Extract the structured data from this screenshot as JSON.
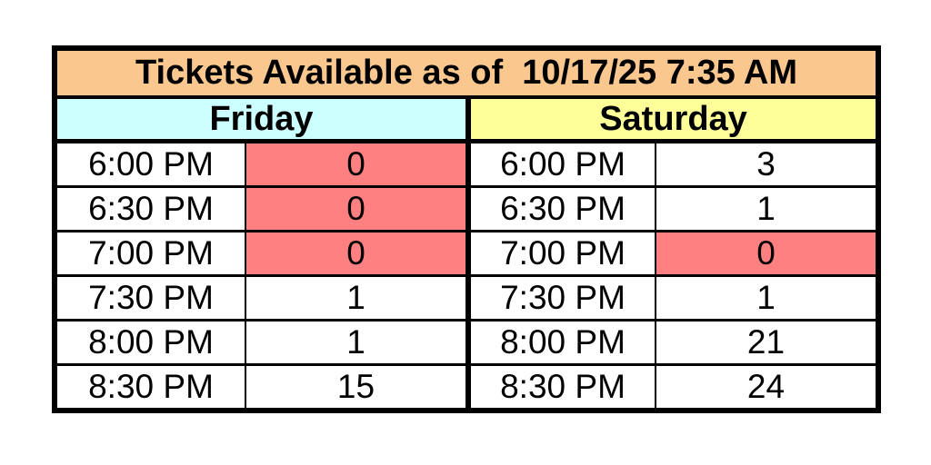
{
  "table": {
    "title": "Tickets Available as of  10/17/25 7:35 AM",
    "as_of_date": "10/17/25",
    "as_of_time": "7:35 AM",
    "days": [
      {
        "label": "Friday"
      },
      {
        "label": "Saturday"
      }
    ],
    "rows": [
      {
        "friday": {
          "time": "6:00 PM",
          "tickets": "0",
          "sold_out": true
        },
        "saturday": {
          "time": "6:00 PM",
          "tickets": "3",
          "sold_out": false
        }
      },
      {
        "friday": {
          "time": "6:30 PM",
          "tickets": "0",
          "sold_out": true
        },
        "saturday": {
          "time": "6:30 PM",
          "tickets": "1",
          "sold_out": false
        }
      },
      {
        "friday": {
          "time": "7:00 PM",
          "tickets": "0",
          "sold_out": true
        },
        "saturday": {
          "time": "7:00 PM",
          "tickets": "0",
          "sold_out": true
        }
      },
      {
        "friday": {
          "time": "7:30 PM",
          "tickets": "1",
          "sold_out": false
        },
        "saturday": {
          "time": "7:30 PM",
          "tickets": "1",
          "sold_out": false
        }
      },
      {
        "friday": {
          "time": "8:00 PM",
          "tickets": "1",
          "sold_out": false
        },
        "saturday": {
          "time": "8:00 PM",
          "tickets": "21",
          "sold_out": false
        }
      },
      {
        "friday": {
          "time": "8:30 PM",
          "tickets": "15",
          "sold_out": false
        },
        "saturday": {
          "time": "8:30 PM",
          "tickets": "24",
          "sold_out": false
        }
      }
    ]
  },
  "colors": {
    "title_bg": "#FAC78F",
    "friday_header_bg": "#CCFFFF",
    "saturday_header_bg": "#FFFF99",
    "sold_out_cell_bg": "#FF8080",
    "border": "#000000",
    "text": "#000000",
    "page_bg": "#FFFFFF"
  },
  "chart_data": {
    "type": "table",
    "title": "Tickets Available as of 10/17/25 7:35 AM",
    "categories": [
      "6:00 PM",
      "6:30 PM",
      "7:00 PM",
      "7:30 PM",
      "8:00 PM",
      "8:30 PM"
    ],
    "series": [
      {
        "name": "Friday",
        "values": [
          0,
          0,
          0,
          1,
          1,
          15
        ]
      },
      {
        "name": "Saturday",
        "values": [
          3,
          1,
          0,
          1,
          21,
          24
        ]
      }
    ],
    "highlighted_zero_cells": [
      [
        "Friday",
        "6:00 PM"
      ],
      [
        "Friday",
        "6:30 PM"
      ],
      [
        "Friday",
        "7:00 PM"
      ],
      [
        "Saturday",
        "7:00 PM"
      ]
    ],
    "legend_position": "none",
    "grid": true
  }
}
